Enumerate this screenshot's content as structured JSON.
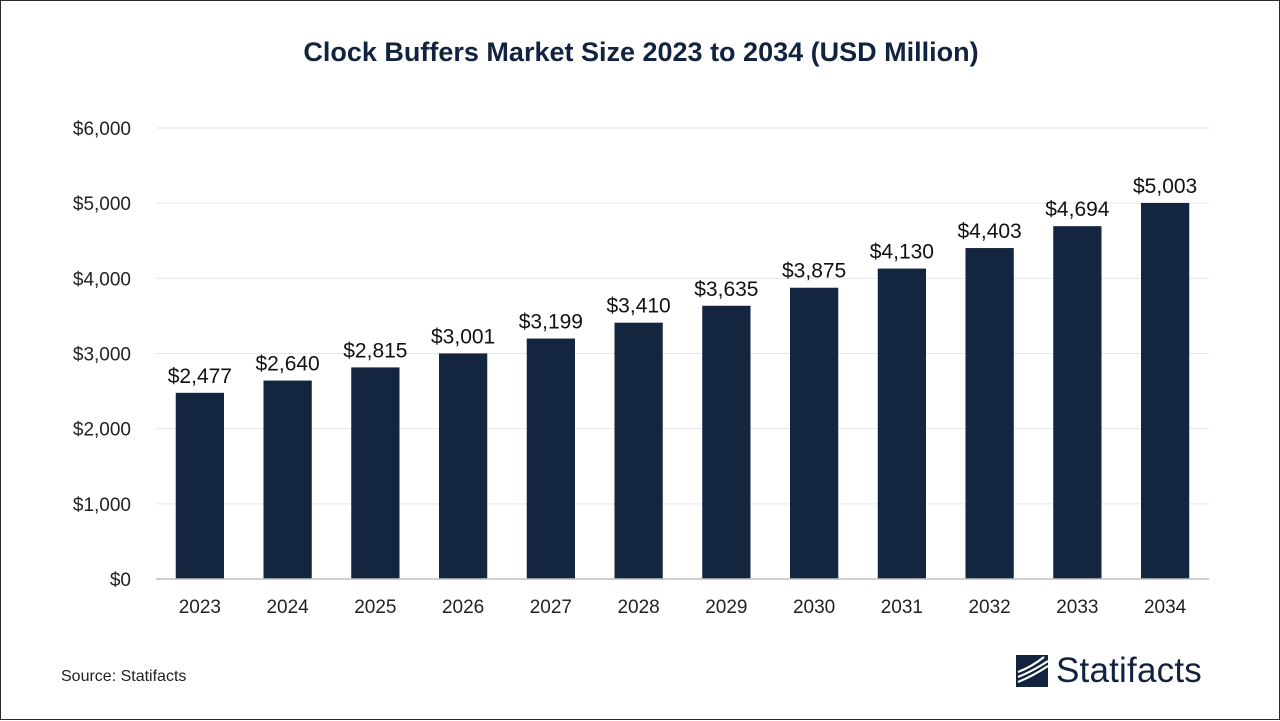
{
  "chart_data": {
    "type": "bar",
    "title": "Clock Buffers Market Size 2023 to 2034 (USD Million)",
    "xlabel": "",
    "ylabel": "",
    "categories": [
      "2023",
      "2024",
      "2025",
      "2026",
      "2027",
      "2028",
      "2029",
      "2030",
      "2031",
      "2032",
      "2033",
      "2034"
    ],
    "values": [
      2477,
      2640,
      2815,
      3001,
      3199,
      3410,
      3635,
      3875,
      4130,
      4403,
      4694,
      5003
    ],
    "value_labels": [
      "$2,477",
      "$2,640",
      "$2,815",
      "$3,001",
      "$3,199",
      "$3,410",
      "$3,635",
      "$3,875",
      "$4,130",
      "$4,403",
      "$4,694",
      "$5,003"
    ],
    "ylim": [
      0,
      6000
    ],
    "yticks": [
      0,
      1000,
      2000,
      3000,
      4000,
      5000,
      6000
    ],
    "ytick_labels": [
      "$0",
      "$1,000",
      "$2,000",
      "$3,000",
      "$4,000",
      "$5,000",
      "$6,000"
    ],
    "grid": true,
    "legend": "none",
    "bar_color": "#13253f"
  },
  "footer": {
    "source": "Source: Statifacts",
    "brand": "Statifacts",
    "brand_color": "#12233f"
  }
}
